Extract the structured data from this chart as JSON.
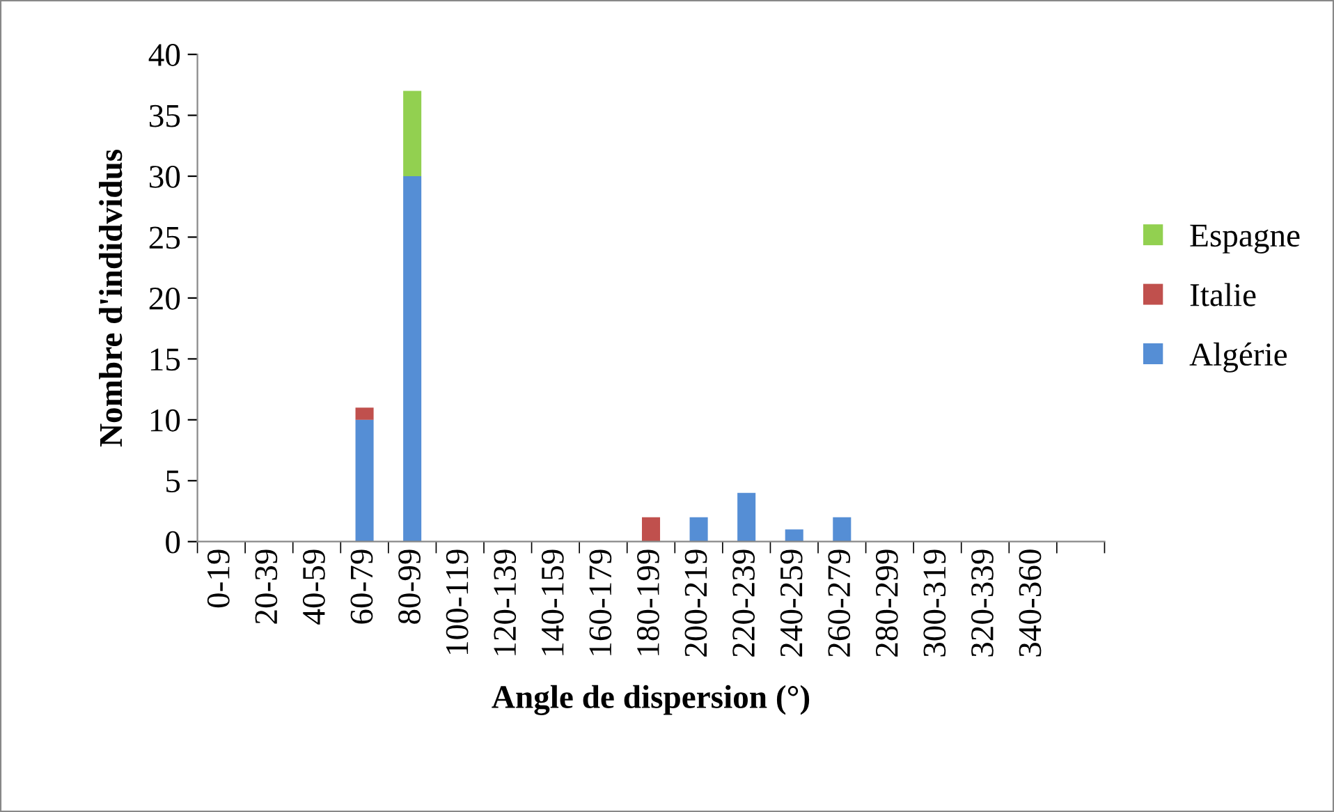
{
  "chart_data": {
    "type": "bar",
    "stacked": true,
    "xlabel": "Angle de dispersion (°)",
    "ylabel": "Nombre d'indidvidus",
    "categories": [
      "0-19",
      "20-39",
      "40-59",
      "60-79",
      "80-99",
      "100-119",
      "120-139",
      "140-159",
      "160-179",
      "180-199",
      "200-219",
      "220-239",
      "240-259",
      "260-279",
      "280-299",
      "300-319",
      "320-339",
      "340-360",
      null
    ],
    "series": [
      {
        "name": "Algérie",
        "color": "#558ed5",
        "values": [
          0,
          0,
          0,
          10,
          30,
          0,
          0,
          0,
          0,
          0,
          2,
          4,
          1,
          2,
          0,
          0,
          0,
          0,
          0
        ]
      },
      {
        "name": "Italie",
        "color": "#c0504d",
        "values": [
          0,
          0,
          0,
          1,
          0,
          0,
          0,
          0,
          0,
          2,
          0,
          0,
          0,
          0,
          0,
          0,
          0,
          0,
          0
        ]
      },
      {
        "name": "Espagne",
        "color": "#92d050",
        "values": [
          0,
          0,
          0,
          0,
          7,
          0,
          0,
          0,
          0,
          0,
          0,
          0,
          0,
          0,
          0,
          0,
          0,
          0,
          0
        ]
      }
    ],
    "ylim": [
      0,
      40
    ],
    "yticks": [
      0,
      5,
      10,
      15,
      20,
      25,
      30,
      35,
      40
    ],
    "grid": false,
    "legend": "right"
  }
}
